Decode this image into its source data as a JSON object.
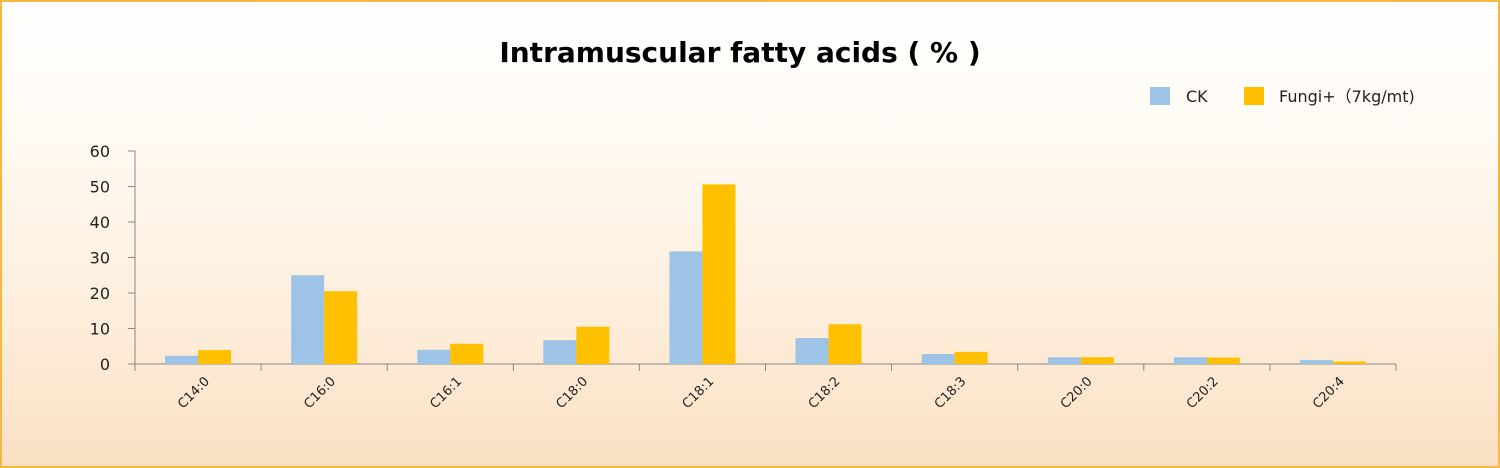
{
  "chart_data": {
    "type": "bar",
    "title": "Intramuscular fatty acids ( % )",
    "xlabel": "",
    "ylabel": "",
    "ylim": [
      0,
      60
    ],
    "yticks": [
      0,
      10,
      20,
      30,
      40,
      50,
      60
    ],
    "categories": [
      "C14:0",
      "C16:0",
      "C16:1",
      "C18:0",
      "C18:1",
      "C18:2",
      "C18:3",
      "C20:0",
      "C20:2",
      "C20:4"
    ],
    "series": [
      {
        "name": "CK",
        "color": "#9dc3e6",
        "values": [
          2.3,
          25.0,
          4.0,
          6.7,
          31.7,
          7.3,
          2.8,
          1.9,
          1.9,
          1.1
        ]
      },
      {
        "name": "Fungi+（7kg/mt)",
        "color": "#ffc000",
        "values": [
          3.9,
          20.5,
          5.7,
          10.5,
          50.6,
          11.2,
          3.4,
          1.9,
          1.8,
          0.7
        ]
      }
    ],
    "legend_position": "top-right",
    "grid": false
  }
}
